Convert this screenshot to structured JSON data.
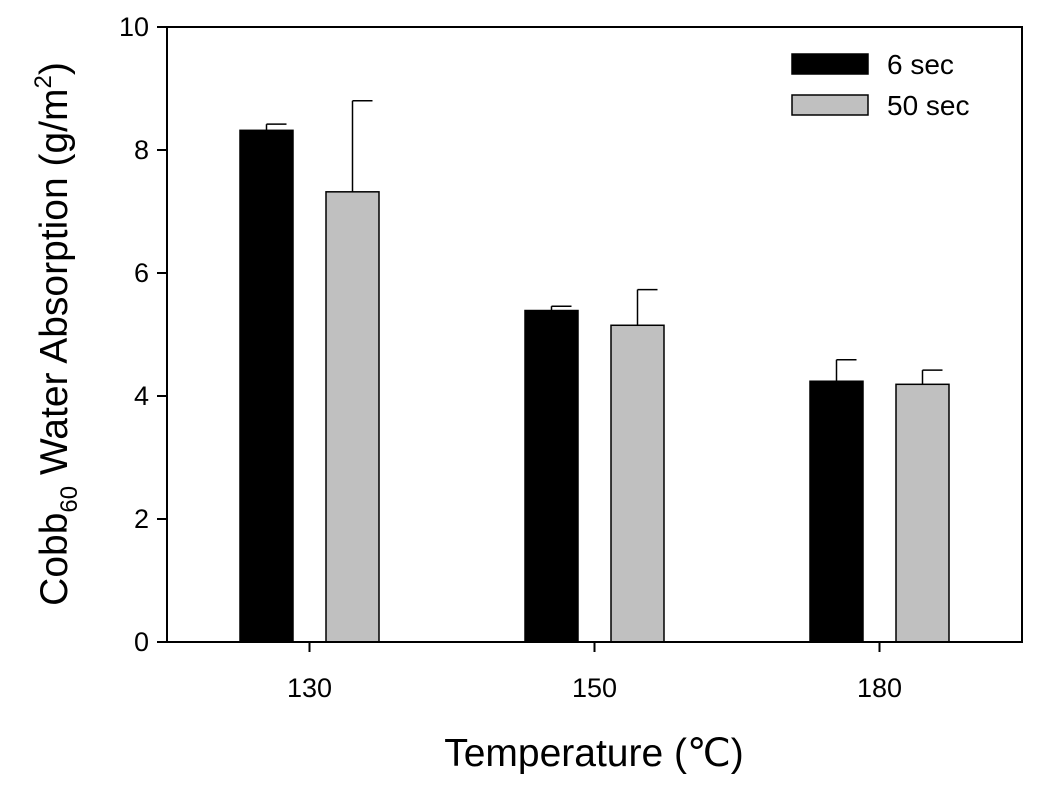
{
  "chart_data": {
    "type": "bar",
    "categories": [
      "130",
      "150",
      "180"
    ],
    "series": [
      {
        "name": "6 sec",
        "color": "#000000",
        "values": [
          8.32,
          5.39,
          4.24
        ],
        "errors": [
          0.1,
          0.07,
          0.35
        ]
      },
      {
        "name": "50 sec",
        "color": "#c0c0c0",
        "values": [
          7.32,
          5.15,
          4.19
        ],
        "errors": [
          1.48,
          0.58,
          0.23
        ]
      }
    ],
    "ylim": [
      0,
      10
    ],
    "yticks": [
      "0",
      "2",
      "4",
      "6",
      "8",
      "10"
    ],
    "xlabel": "Temperature (℃)",
    "ylabel": {
      "prefix": "Cobb",
      "subscript": "60",
      "middle": " Water Absorption (g/m",
      "superscript": "2",
      "suffix": ")"
    },
    "legend": "top-right",
    "grid": false
  }
}
